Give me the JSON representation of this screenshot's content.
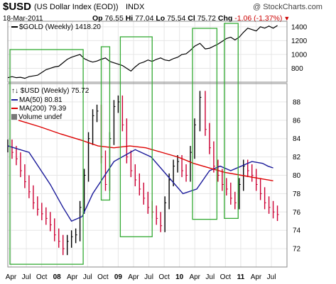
{
  "header": {
    "symbol": "$USD",
    "name": "(US Dollar Index (EOD))",
    "exchange": "INDX",
    "brand": "@ StockCharts.com",
    "date": "18-Mar-2011",
    "open_label": "Op",
    "open": "76.55",
    "high_label": "Hi",
    "high": "77.04",
    "low_label": "Lo",
    "low": "75.54",
    "close_label": "Cl",
    "close": "75.72",
    "change_label": "Chg",
    "change": "-1.06 (-1.37%)",
    "down_color": "#cc0000"
  },
  "legend": {
    "gold": "$GOLD (Weekly) 1418.20",
    "usd": "$USD (Weekly) 75.72",
    "ma50": "MA(50) 80.81",
    "ma200": "MA(200) 79.39",
    "volume": "Volume undef"
  },
  "colors": {
    "gold_line": "#000000",
    "up_bar": "#000000",
    "down_bar": "#cc0033",
    "ma50": "#1a1a9a",
    "ma200": "#dd0000",
    "box": "#33aa33",
    "grid": "#e6e6e6"
  },
  "chart_data": [
    {
      "type": "line",
      "name": "gold-panel",
      "series": [
        {
          "name": "$GOLD (Weekly)",
          "x": [
            0,
            4,
            8,
            12,
            16,
            20,
            24,
            28,
            32,
            36,
            40,
            44,
            48,
            52,
            56,
            60,
            64,
            68,
            72,
            76,
            80,
            84,
            88,
            92,
            96,
            100,
            104,
            108,
            112,
            116,
            120,
            124,
            128,
            132,
            136,
            140,
            144,
            148,
            152,
            156,
            160,
            164,
            168,
            172,
            176,
            181,
            186,
            190,
            194,
            198,
            202,
            206,
            210,
            214,
            218,
            222,
            226,
            230,
            234,
            238,
            242,
            246,
            250,
            254
          ],
          "values": [
            665,
            680,
            665,
            670,
            655,
            680,
            690,
            700,
            740,
            780,
            800,
            820,
            830,
            880,
            930,
            960,
            980,
            1000,
            940,
            910,
            890,
            905,
            930,
            950,
            900,
            880,
            860,
            840,
            800,
            760,
            820,
            870,
            890,
            920,
            900,
            930,
            950,
            920,
            910,
            940,
            960,
            1000,
            1010,
            1060,
            1120,
            1160,
            1080,
            1090,
            1120,
            1150,
            1190,
            1230,
            1250,
            1210,
            1250,
            1320,
            1380,
            1360,
            1340,
            1400,
            1380,
            1410,
            1380,
            1418
          ]
        }
      ],
      "ylim": [
        600,
        1480
      ],
      "y_ticks": [
        800,
        1000,
        1200,
        1400
      ]
    },
    {
      "type": "bar",
      "name": "usd-panel",
      "series": [
        {
          "name": "$USD (Weekly)",
          "x": [
            0,
            4,
            8,
            12,
            16,
            20,
            24,
            28,
            32,
            36,
            40,
            44,
            48,
            52,
            56,
            60,
            64,
            68,
            72,
            76,
            80,
            84,
            88,
            92,
            96,
            100,
            104,
            108,
            112,
            116,
            120,
            124,
            128,
            132,
            136,
            140,
            144,
            148,
            152,
            156,
            160,
            164,
            168,
            172,
            176,
            181,
            186,
            190,
            194,
            198,
            202,
            206,
            210,
            214,
            218,
            222,
            226,
            230,
            234,
            238,
            242,
            246,
            250,
            254
          ],
          "values": [
            83.2,
            82.5,
            81.8,
            80.5,
            79.3,
            78.2,
            77.0,
            76.3,
            75.8,
            75.3,
            74.6,
            73.5,
            72.8,
            72.0,
            72.8,
            73.3,
            73.5,
            76.5,
            80.0,
            84.0,
            86.5,
            87.0,
            82.0,
            79.0,
            84.0,
            87.5,
            88.0,
            85.5,
            82.0,
            80.5,
            79.5,
            78.5,
            77.5,
            76.5,
            76.0,
            75.3,
            74.5,
            77.0,
            79.5,
            81.0,
            81.5,
            80.5,
            80.0,
            82.5,
            85.5,
            88.5,
            85.0,
            83.0,
            81.0,
            80.0,
            79.0,
            78.5,
            77.5,
            77.0,
            79.0,
            81.0,
            80.5,
            80.0,
            79.0,
            78.0,
            77.0,
            76.5,
            76.0,
            75.72
          ]
        },
        {
          "name": "MA(50)",
          "x": [
            0,
            20,
            40,
            52,
            60,
            70,
            80,
            100,
            120,
            135,
            150,
            165,
            178,
            190,
            200,
            210,
            220,
            230,
            240,
            245,
            250
          ],
          "values": [
            83.2,
            82.5,
            79.0,
            76.5,
            75.0,
            75.5,
            78.0,
            81.5,
            82.8,
            82.0,
            80.0,
            78.0,
            78.5,
            80.5,
            81.0,
            80.5,
            81.0,
            81.5,
            81.3,
            81.0,
            80.8
          ]
        },
        {
          "name": "MA(200)",
          "x": [
            10,
            30,
            50,
            70,
            85,
            100,
            115,
            130,
            145,
            160,
            175,
            190,
            205,
            220,
            235,
            250
          ],
          "values": [
            86.0,
            85.3,
            84.5,
            83.8,
            83.2,
            83.0,
            83.2,
            83.0,
            82.5,
            82.0,
            81.3,
            80.8,
            80.3,
            80.0,
            79.7,
            79.4
          ]
        }
      ],
      "ylim": [
        70,
        90
      ],
      "y_ticks": [
        72,
        74,
        76,
        78,
        80,
        82,
        84,
        86,
        88
      ],
      "boxes": [
        {
          "x0": 2,
          "x1": 71,
          "y0": 70.3,
          "y1": 85.1
        },
        {
          "x0": 88,
          "x1": 96,
          "y0": 77.3,
          "y1": 88.9
        },
        {
          "x0": 106,
          "x1": 136,
          "y0": 73.3,
          "y1": 88.4
        },
        {
          "x0": 174,
          "x1": 197,
          "y0": 75.2,
          "y1": 89.8
        },
        {
          "x0": 204,
          "x1": 217,
          "y0": 75.3,
          "y1": 90.6
        }
      ]
    }
  ],
  "x_axis": {
    "labels": [
      "Apr",
      "Jul",
      "Oct",
      "08",
      "Apr",
      "Jul",
      "Oct",
      "09",
      "Apr",
      "Jul",
      "Oct",
      "10",
      "Apr",
      "Jul",
      "Oct",
      "11",
      "Apr",
      "Jul"
    ],
    "positions": [
      0,
      13,
      26,
      39,
      52,
      65,
      78,
      91,
      104,
      117,
      130,
      143,
      156,
      169,
      182,
      195,
      208,
      221
    ]
  }
}
